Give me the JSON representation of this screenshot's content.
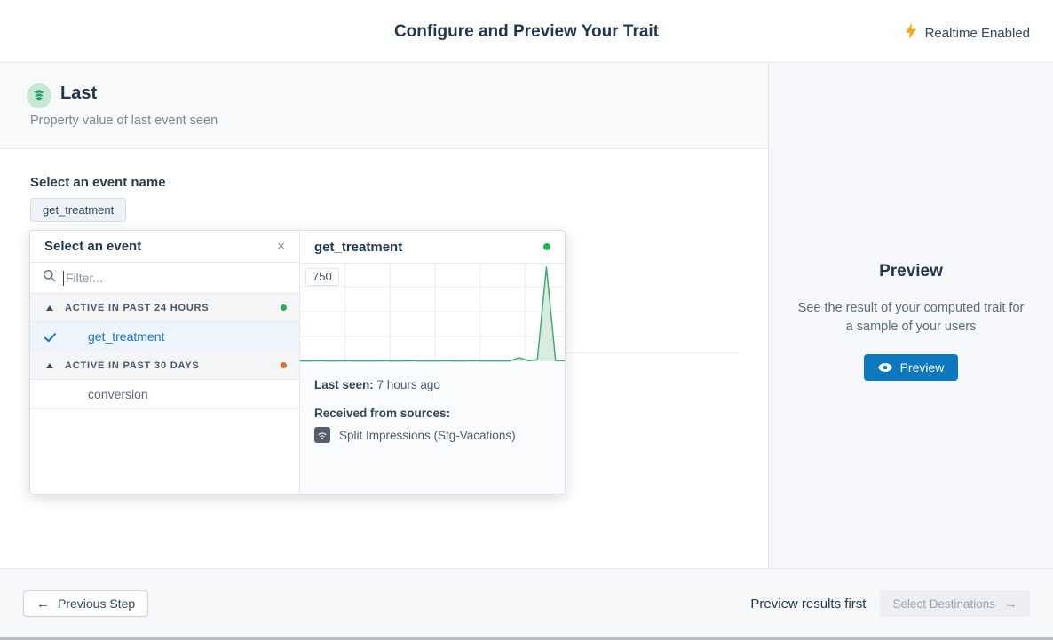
{
  "header": {
    "title": "Configure and Preview Your Trait",
    "realtime_label": "Realtime Enabled",
    "realtime_icon_color": "#f6a80d"
  },
  "trait": {
    "name": "Last",
    "description": "Property value of last event seen",
    "icon": "layers-icon",
    "icon_bg": "#c6e9d6",
    "icon_color": "#2f9e68"
  },
  "event_select": {
    "label": "Select an event name",
    "selected_chip": "get_treatment"
  },
  "popover": {
    "title": "Select an event",
    "close_icon": "×",
    "filter_placeholder": "Filter...",
    "groups": [
      {
        "label": "ACTIVE IN PAST 24 HOURS",
        "dot_color": "#27b04e",
        "items": [
          {
            "name": "get_treatment",
            "selected": true
          }
        ]
      },
      {
        "label": "ACTIVE IN PAST 30 DAYS",
        "dot_color": "#e0702e",
        "items": [
          {
            "name": "conversion",
            "selected": false
          }
        ]
      }
    ],
    "detail": {
      "title": "get_treatment",
      "status_dot_color": "#27b04e",
      "last_seen_label": "Last seen:",
      "last_seen_value": "7 hours ago",
      "sources_label": "Received from sources:",
      "source_name": "Split Impressions (Stg-Vacations)",
      "source_icon": "wifi-icon"
    }
  },
  "chart_data": {
    "type": "area",
    "title": "get_treatment event activity sparkline",
    "y_max": 750,
    "y_max_label": "750",
    "x_labels": [],
    "values": [
      3,
      3,
      4,
      3,
      3,
      4,
      3,
      3,
      3,
      4,
      3,
      3,
      4,
      3,
      3,
      3,
      4,
      3,
      3,
      4,
      3,
      3,
      3,
      3,
      30,
      6,
      12,
      750,
      6,
      4
    ],
    "line_color": "#47a87a",
    "fill_color": "#d8ecdf",
    "grid": true
  },
  "sidebar": {
    "title": "Preview",
    "description": "See the result of your computed trait for a sample of your users",
    "button_label": "Preview",
    "button_color": "#0b78c0"
  },
  "footer": {
    "previous_label": "Previous Step",
    "previous_arrow": "←",
    "hint": "Preview results first",
    "next_label": "Select Destinations",
    "next_arrow": "→"
  },
  "colors": {
    "navy_text": "#22374d",
    "muted_text": "#7b8794",
    "selected_blue": "#1b76c2",
    "green_status": "#27b04e",
    "orange_status": "#e0702e",
    "section_bg": "#f8f9fa",
    "sidebar_bg": "#f7f8fb",
    "border": "#e6e9ed"
  }
}
